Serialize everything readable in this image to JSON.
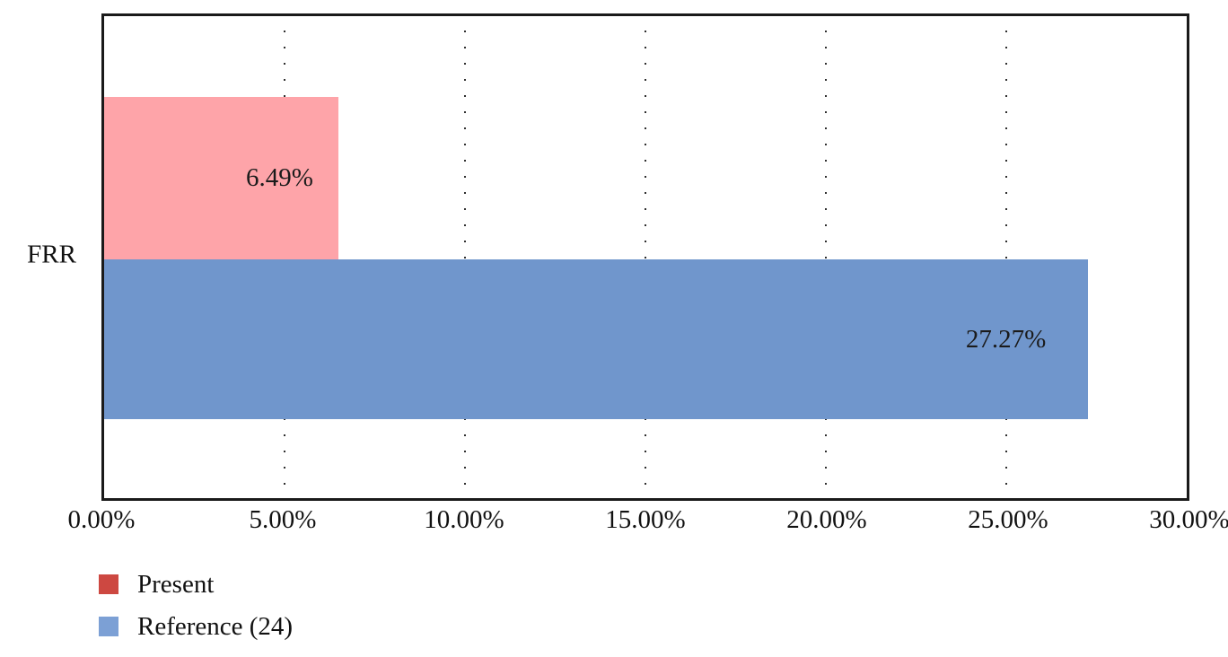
{
  "chart_data": {
    "type": "bar",
    "orientation": "horizontal",
    "title": "",
    "xlabel": "",
    "ylabel": "",
    "categories": [
      "FRR"
    ],
    "series": [
      {
        "name": "Present",
        "values": [
          6.49
        ],
        "value_labels": [
          "6.49%"
        ],
        "legend_color": "#cd4841",
        "bar_color": "#fea4a9"
      },
      {
        "name": "Reference (24)",
        "values": [
          27.27
        ],
        "value_labels": [
          "27.27%"
        ],
        "legend_color": "#7ca0d5",
        "bar_color": "#7096cc"
      }
    ],
    "xlim": [
      0,
      30
    ],
    "x_ticks": [
      0,
      5,
      10,
      15,
      20,
      25,
      30
    ],
    "x_tick_labels": [
      "0.00%",
      "5.00%",
      "10.00%",
      "15.00%",
      "20.00%",
      "25.00%",
      "30.00%"
    ],
    "gridlines": {
      "style": "dotted",
      "at": [
        5,
        10,
        15,
        20,
        25
      ]
    },
    "legend_position": "bottom-left",
    "background": "#ffffff",
    "border_color": "#1a1a1a"
  }
}
